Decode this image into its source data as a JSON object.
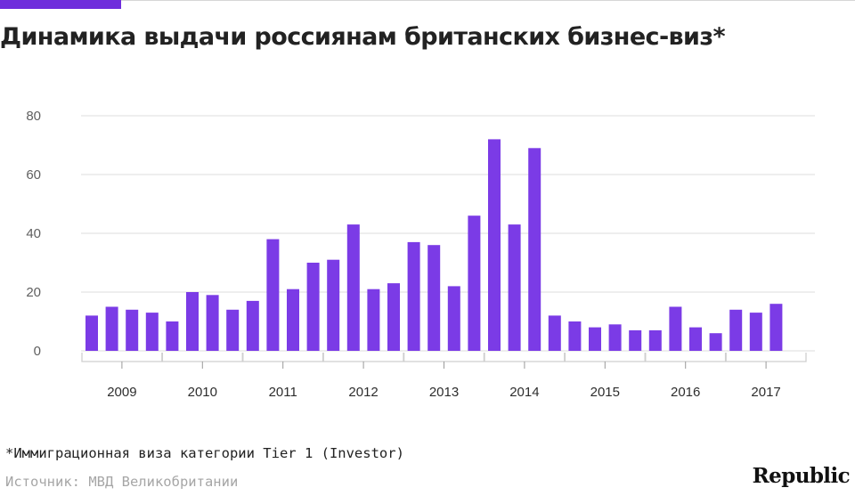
{
  "header": {
    "title": "Динамика выдачи россиянам британских бизнес-виз*"
  },
  "footer": {
    "footnote": "*Иммиграционная виза категории Tier 1 (Investor)",
    "source": "Источник: МВД Великобритании",
    "logo": "Republic"
  },
  "colors": {
    "accent": "#6f2ddc",
    "bar": "#7b3be6",
    "grid": "#dedede",
    "tick_text": "#5f5f5f",
    "year_text": "#2d2d2d",
    "bracket": "#cfcfcf"
  },
  "chart_data": {
    "type": "bar",
    "title": "Динамика выдачи россиянам британских бизнес-виз*",
    "xlabel": "",
    "ylabel": "",
    "ylim": [
      0,
      80
    ],
    "yticks": [
      0,
      20,
      40,
      60,
      80
    ],
    "grid": true,
    "legend": "none",
    "groups": [
      {
        "label": "2009",
        "values": [
          12,
          15,
          14,
          13
        ]
      },
      {
        "label": "2010",
        "values": [
          10,
          20,
          19,
          14
        ]
      },
      {
        "label": "2011",
        "values": [
          17,
          38,
          21,
          30
        ]
      },
      {
        "label": "2012",
        "values": [
          31,
          43,
          21,
          23
        ]
      },
      {
        "label": "2013",
        "values": [
          37,
          36,
          22,
          46
        ]
      },
      {
        "label": "2014",
        "values": [
          72,
          43,
          69,
          12
        ]
      },
      {
        "label": "2015",
        "values": [
          10,
          8,
          9,
          7
        ]
      },
      {
        "label": "2016",
        "values": [
          7,
          15,
          8,
          6
        ]
      },
      {
        "label": "2017",
        "values": [
          14,
          13,
          16
        ]
      }
    ]
  }
}
